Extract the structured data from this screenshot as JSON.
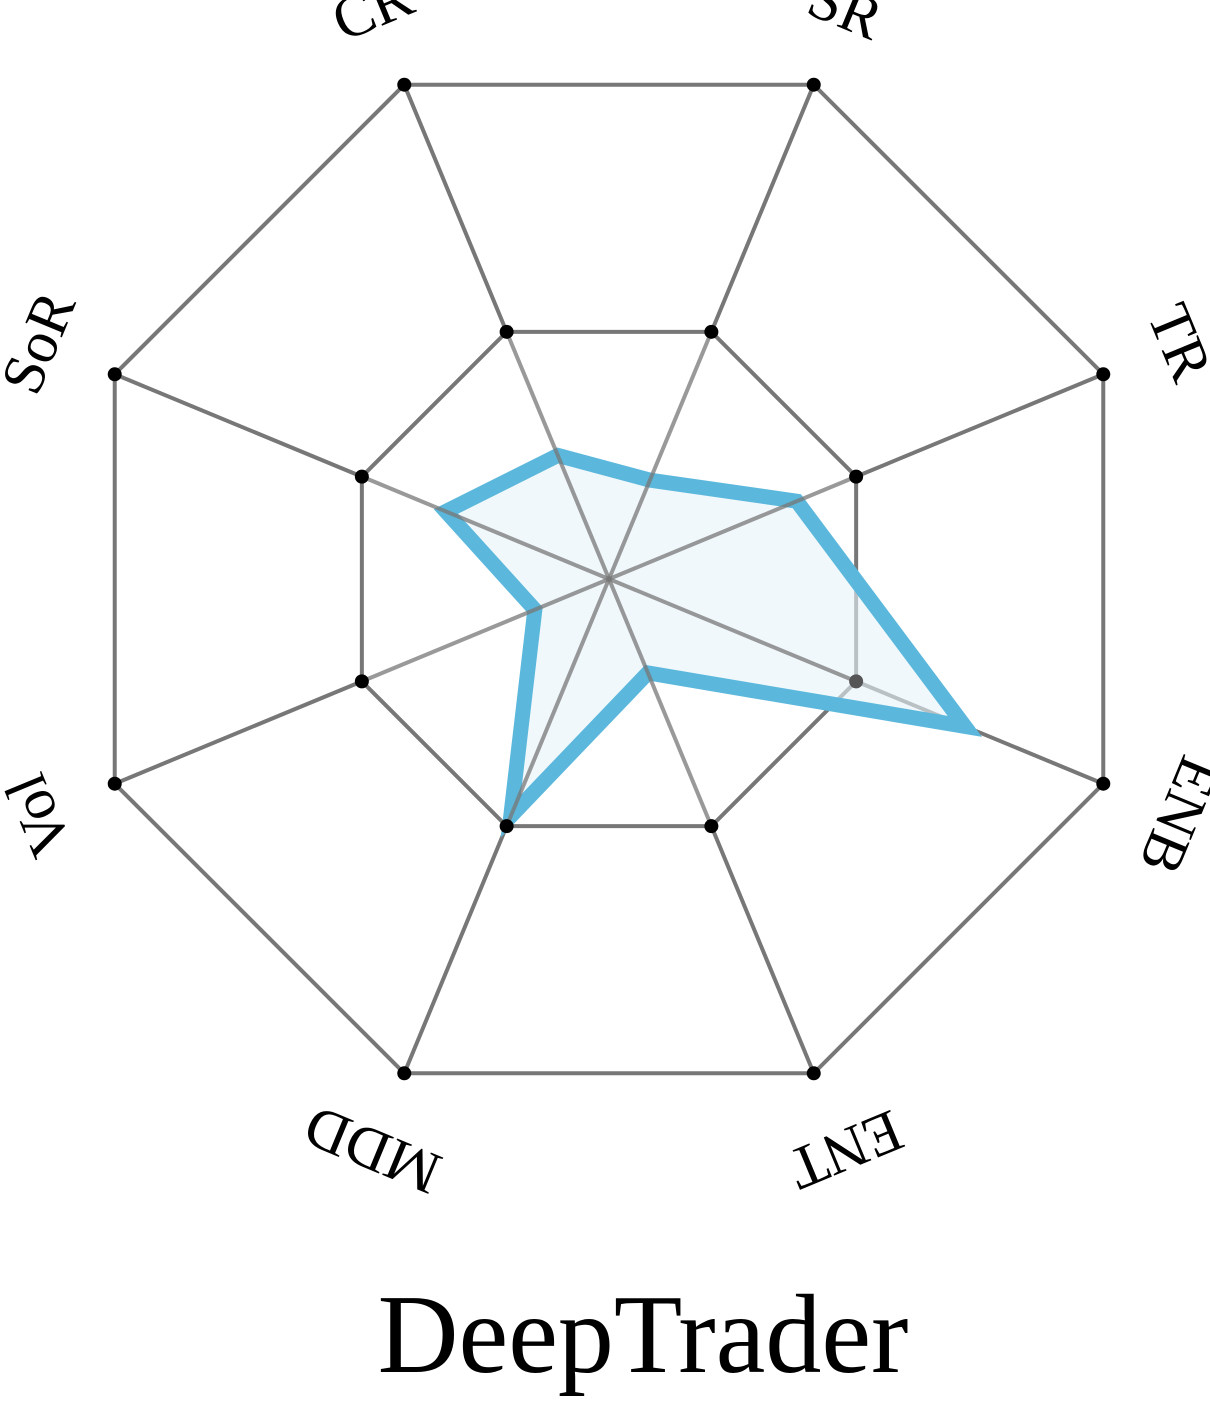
{
  "chart_data": {
    "type": "radar",
    "title": "DeepTrader",
    "axes": [
      "CR",
      "SR",
      "TR",
      "ENB",
      "ENT",
      "MDD",
      "Vol",
      "SoR"
    ],
    "rings": [
      0.5,
      1.0
    ],
    "range": [
      0,
      1
    ],
    "grid": true,
    "series": [
      {
        "values": [
          0.25,
          0.2,
          0.38,
          0.72,
          0.19,
          0.48,
          0.15,
          0.33
        ],
        "color": "#5bb8dc",
        "fill": "#e8f4fa"
      }
    ]
  },
  "colors": {
    "grid": "#777777",
    "vertex": "#000000"
  }
}
